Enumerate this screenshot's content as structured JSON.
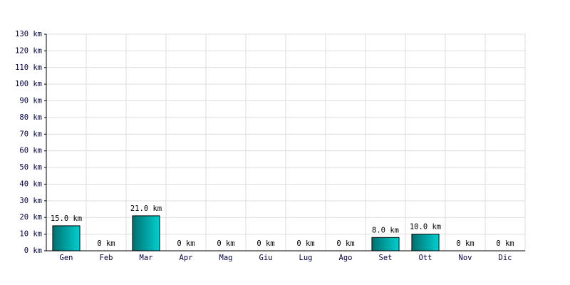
{
  "chart_data": {
    "type": "bar",
    "categories": [
      "Gen",
      "Feb",
      "Mar",
      "Apr",
      "Mag",
      "Giu",
      "Lug",
      "Ago",
      "Set",
      "Ott",
      "Nov",
      "Dic"
    ],
    "values": [
      15,
      0,
      21,
      0,
      0,
      0,
      0,
      0,
      8,
      10,
      0,
      0
    ],
    "value_labels": [
      "15.0 km",
      "0 km",
      "21.0 km",
      "0 km",
      "0 km",
      "0 km",
      "0 km",
      "0 km",
      "8.0 km",
      "10.0 km",
      "0 km",
      "0 km"
    ],
    "color": "#00d0d0",
    "ylim": [
      0,
      130
    ],
    "yticks": [
      {
        "value": 0,
        "label": "0 km"
      },
      {
        "value": 10,
        "label": "10 km"
      },
      {
        "value": 20,
        "label": "20 km"
      },
      {
        "value": 30,
        "label": "30 km"
      },
      {
        "value": 40,
        "label": "40 km"
      },
      {
        "value": 50,
        "label": "50 km"
      },
      {
        "value": 60,
        "label": "60 km"
      },
      {
        "value": 70,
        "label": "70 km"
      },
      {
        "value": 80,
        "label": "80 km"
      },
      {
        "value": 90,
        "label": "90 km"
      },
      {
        "value": 100,
        "label": "100 km"
      },
      {
        "value": 110,
        "label": "110 km"
      },
      {
        "value": 120,
        "label": "120 km"
      },
      {
        "value": 130,
        "label": "130 km"
      }
    ],
    "grid": true
  }
}
